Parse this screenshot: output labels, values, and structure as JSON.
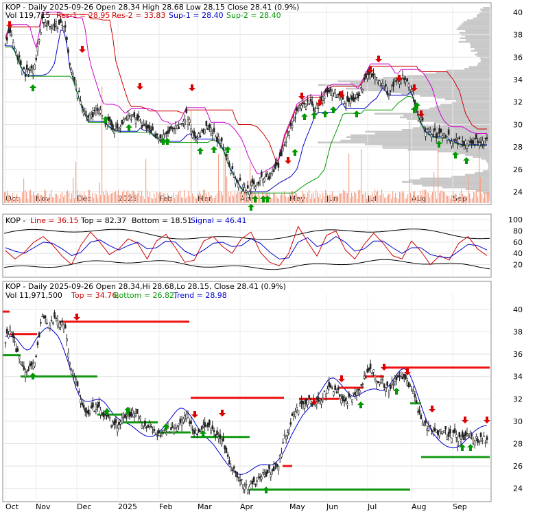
{
  "chart_data": [
    {
      "type": "candlestick",
      "panel": "price",
      "header": {
        "line1": "KOP - Daily 2025-09-26 Open 28.34  High 28.68  Low 28.15  Close 28.41 (0.9%)",
        "vol_label": "Vol 119,715",
        "res1": "Res-1 = 28.95",
        "res2": "Res-2 = 33.83",
        "sup1": "Sup-1 = 28.40",
        "sup2": "Sup-2 = 28.40"
      },
      "y_ticks": [
        "40",
        "38",
        "36",
        "34",
        "32",
        "30",
        "28",
        "26",
        "24"
      ],
      "ylim": [
        23,
        40.6
      ],
      "x_ticks": [
        "Oct",
        "Nov",
        "Dec",
        "2025",
        "Feb",
        "Mar",
        "Apr",
        "May",
        "Jun",
        "Jul",
        "Aug",
        "Sep"
      ],
      "close_path": [
        [
          0,
          37.2
        ],
        [
          6,
          38.3
        ],
        [
          12,
          36.8
        ],
        [
          20,
          35.4
        ],
        [
          26,
          34.6
        ],
        [
          33,
          34.9
        ],
        [
          40,
          35.8
        ],
        [
          48,
          39.4
        ],
        [
          56,
          38.6
        ],
        [
          63,
          39.0
        ],
        [
          70,
          38.8
        ],
        [
          77,
          38.9
        ],
        [
          84,
          35.2
        ],
        [
          92,
          33.4
        ],
        [
          100,
          31.7
        ],
        [
          108,
          30.5
        ],
        [
          116,
          31.2
        ],
        [
          124,
          31.0
        ],
        [
          132,
          30.2
        ],
        [
          140,
          29.8
        ],
        [
          148,
          29.6
        ],
        [
          156,
          30.4
        ],
        [
          164,
          30.8
        ],
        [
          172,
          30.6
        ],
        [
          180,
          29.7
        ],
        [
          188,
          29.6
        ],
        [
          196,
          29.1
        ],
        [
          204,
          28.7
        ],
        [
          212,
          29.3
        ],
        [
          220,
          29.5
        ],
        [
          228,
          29.8
        ],
        [
          236,
          30.9
        ],
        [
          244,
          29.3
        ],
        [
          252,
          28.9
        ],
        [
          260,
          29.6
        ],
        [
          268,
          29.4
        ],
        [
          276,
          28.8
        ],
        [
          284,
          28.0
        ],
        [
          292,
          26.5
        ],
        [
          300,
          25.4
        ],
        [
          308,
          24.5
        ],
        [
          316,
          24.2
        ],
        [
          324,
          24.6
        ],
        [
          332,
          25.0
        ],
        [
          340,
          25.3
        ],
        [
          348,
          25.6
        ],
        [
          356,
          26.3
        ],
        [
          364,
          28.5
        ],
        [
          372,
          29.8
        ],
        [
          380,
          31.2
        ],
        [
          388,
          31.6
        ],
        [
          396,
          32.0
        ],
        [
          404,
          31.3
        ],
        [
          412,
          32.0
        ],
        [
          420,
          32.8
        ],
        [
          428,
          33.0
        ],
        [
          436,
          32.5
        ],
        [
          444,
          31.6
        ],
        [
          452,
          32.2
        ],
        [
          460,
          32.6
        ],
        [
          468,
          33.7
        ],
        [
          476,
          34.8
        ],
        [
          484,
          33.9
        ],
        [
          492,
          33.5
        ],
        [
          500,
          32.8
        ],
        [
          508,
          33.6
        ],
        [
          516,
          34.3
        ],
        [
          524,
          33.6
        ],
        [
          532,
          32.6
        ],
        [
          540,
          30.6
        ],
        [
          548,
          29.6
        ],
        [
          556,
          29.2
        ],
        [
          564,
          29.1
        ],
        [
          572,
          29.2
        ],
        [
          580,
          28.8
        ],
        [
          588,
          28.6
        ],
        [
          596,
          28.4
        ],
        [
          604,
          28.6
        ],
        [
          612,
          28.5
        ],
        [
          620,
          28.4
        ],
        [
          628,
          28.41
        ]
      ],
      "volume_profile": "horizontal gray histogram on right edge"
    },
    {
      "type": "line",
      "panel": "oscillator",
      "header": {
        "name": "KOP - ",
        "line_label": "Line = 36.15",
        "top_label": "Top = 82.37",
        "bottom_label": "Bottom = 18.51",
        "signal_label": "Signal = 46.41"
      },
      "y_ticks": [
        "100",
        "80",
        "60",
        "40",
        "20"
      ],
      "ylim": [
        0,
        105
      ],
      "series": [
        {
          "name": "Line",
          "values": [
            45,
            30,
            42,
            60,
            70,
            55,
            35,
            20,
            55,
            78,
            60,
            38,
            48,
            66,
            58,
            30,
            62,
            74,
            50,
            24,
            28,
            62,
            70,
            52,
            40,
            66,
            78,
            42,
            24,
            18,
            40,
            88,
            60,
            35,
            72,
            80,
            46,
            30,
            56,
            76,
            58,
            36,
            30,
            62,
            44,
            20,
            36,
            28,
            58,
            70,
            48,
            36
          ]
        },
        {
          "name": "Signal",
          "values": [
            50,
            44,
            40,
            50,
            60,
            58,
            48,
            36,
            42,
            60,
            64,
            54,
            46,
            54,
            60,
            48,
            50,
            62,
            60,
            44,
            36,
            46,
            58,
            60,
            52,
            54,
            66,
            58,
            42,
            30,
            32,
            60,
            68,
            52,
            58,
            70,
            60,
            44,
            48,
            62,
            62,
            50,
            40,
            50,
            50,
            38,
            34,
            32,
            44,
            56,
            54,
            46
          ]
        }
      ]
    },
    {
      "type": "candlestick",
      "panel": "trend",
      "header": {
        "line1": "KOP - Daily 2025-09-26 Open 28.34,Hi 28.68,Lo 28.15, Close 28.41 (0.9%)",
        "vol_label": "Vol 11,971,500",
        "top_label": "Top = 34.76,",
        "bottom_label": "Bottom = 26.82,",
        "trend_label": "Trend = 28.98"
      },
      "y_ticks": [
        "40",
        "38",
        "36",
        "34",
        "32",
        "30",
        "28",
        "26",
        "24"
      ],
      "ylim": [
        23,
        41.4
      ],
      "x_ticks": [
        "Oct",
        "Nov",
        "Dec",
        "2025",
        "Feb",
        "Mar",
        "Apr",
        "May",
        "Jun",
        "Jul",
        "Aug",
        "Sep"
      ]
    }
  ],
  "colors": {
    "candle": "#222222",
    "res1": "#cc0000",
    "res2": "#cc00cc",
    "sup1": "#0000cc",
    "sup2": "#009900",
    "volume": "#f4a38a",
    "profile": "#c8c8c8",
    "arrow_up": "#009900",
    "arrow_down": "#dd0000",
    "osc_line": "#cc0000",
    "osc_signal": "#0000cc",
    "osc_bounds": "#000000"
  }
}
